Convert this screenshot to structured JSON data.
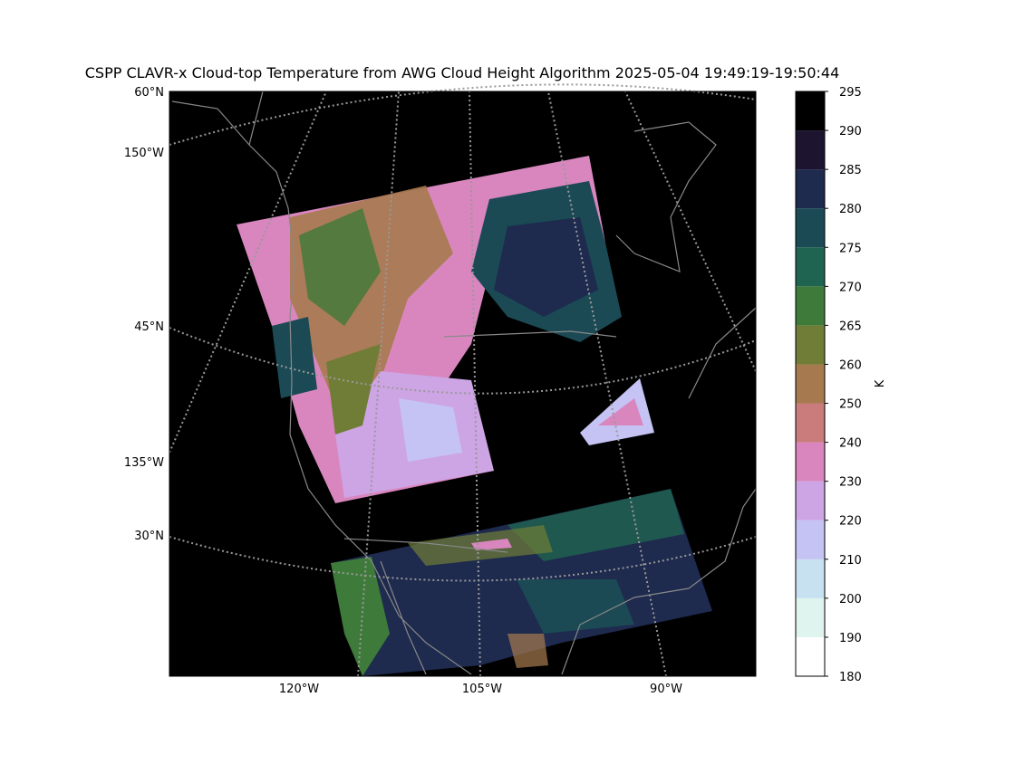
{
  "title": "CSPP CLAVR-x Cloud-top Temperature from AWG Cloud Height Algorithm 2025-05-04 19:49:19-19:50:44",
  "map": {
    "lat_labels": [
      "60°N",
      "45°N",
      "30°N"
    ],
    "lon_labels_left": [
      "150°W",
      "135°W"
    ],
    "lon_labels_bottom": [
      "120°W",
      "105°W",
      "90°W"
    ]
  },
  "colorbar": {
    "label": "K",
    "ticks": [
      180,
      190,
      200,
      210,
      220,
      230,
      240,
      250,
      260,
      265,
      270,
      275,
      280,
      285,
      290,
      295
    ],
    "colors": [
      "#ffffff",
      "#dff4ee",
      "#c7e1f0",
      "#c5c3f4",
      "#cda5e4",
      "#d986bf",
      "#c97c7b",
      "#a67a4e",
      "#6f7d36",
      "#3e7a3a",
      "#1f6450",
      "#1b4a55",
      "#1e2a4e",
      "#1d1530",
      "#000000"
    ]
  }
}
